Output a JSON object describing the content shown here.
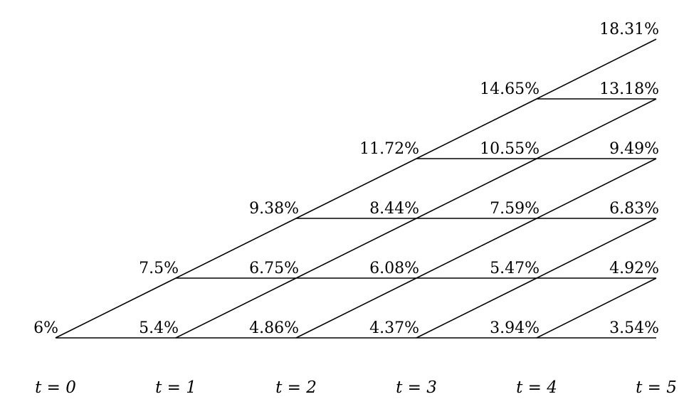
{
  "lattice": {
    "text_color": "#000000",
    "highlight_color": "#b5352b",
    "line_color": "#000000",
    "columns": [
      {
        "time_label": "t = 0",
        "rates": [
          "6%"
        ]
      },
      {
        "time_label": "t = 1",
        "rates": [
          "5.4%",
          "7.5%"
        ]
      },
      {
        "time_label": "t = 2",
        "rates": [
          "4.86%",
          "6.75%",
          "9.38%"
        ]
      },
      {
        "time_label": "t = 3",
        "rates": [
          "4.37%",
          "6.08%",
          "8.44%",
          "11.72%"
        ]
      },
      {
        "time_label": "t = 4",
        "rates": [
          "3.94%",
          "5.47%",
          "7.59%",
          "10.55%",
          "14.65%"
        ]
      },
      {
        "time_label": "t = 5",
        "rates": [
          "3.54%",
          "4.92%",
          "6.83%",
          "9.49%",
          "13.18%",
          "18.31%"
        ]
      }
    ],
    "highlighted_node": {
      "column": 2,
      "level": 2
    }
  }
}
